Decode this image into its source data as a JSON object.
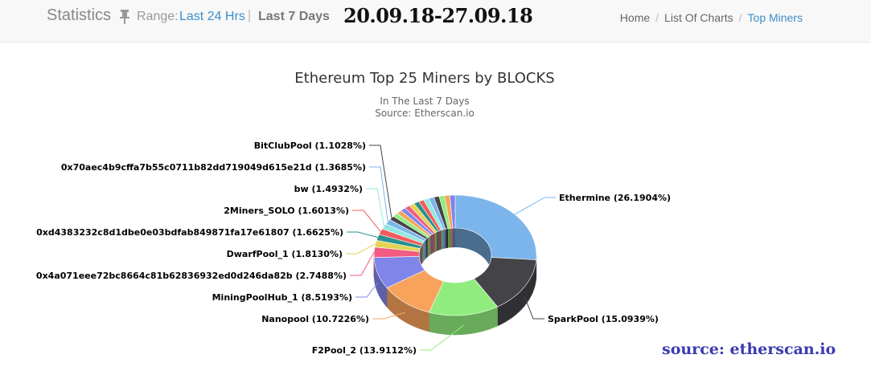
{
  "header": {
    "title": "Statistics",
    "range_label": "Range:",
    "range_24h": "Last 24 Hrs",
    "range_sep": "|",
    "range_7d": "Last 7 Days",
    "date_range": "20.09.18-27.09.18"
  },
  "breadcrumb": {
    "home": "Home",
    "list": "List Of Charts",
    "current": "Top Miners"
  },
  "watermark": "source: etherscan.io",
  "chart_data": {
    "type": "pie",
    "title": "Ethereum Top 25 Miners by BLOCKS",
    "subtitle": "In The Last 7 Days",
    "source": "Source: Etherscan.io",
    "labeled": [
      {
        "name": "Ethermine",
        "value": 26.1904,
        "label": "Ethermine (26.1904%)",
        "color": "#7cb5ec"
      },
      {
        "name": "SparkPool",
        "value": 15.0939,
        "label": "SparkPool (15.0939%)",
        "color": "#434348"
      },
      {
        "name": "F2Pool_2",
        "value": 13.9112,
        "label": "F2Pool_2 (13.9112%)",
        "color": "#90ed7d"
      },
      {
        "name": "Nanopool",
        "value": 10.7226,
        "label": "Nanopool (10.7226%)",
        "color": "#f7a35c"
      },
      {
        "name": "MiningPoolHub_1",
        "value": 8.5193,
        "label": "MiningPoolHub_1 (8.5193%)",
        "color": "#8085e9"
      },
      {
        "name": "0x4a071eee72bc8664c81b62836932ed0d246da82b",
        "value": 2.7488,
        "label": "0x4a071eee72bc8664c81b62836932ed0d246da82b (2.7488%)",
        "color": "#f15c80"
      },
      {
        "name": "DwarfPool_1",
        "value": 1.813,
        "label": "DwarfPool_1 (1.8130%)",
        "color": "#e4d354"
      },
      {
        "name": "0xd4383232c8d1dbe0e03bdfab849871fa17e61807",
        "value": 1.6625,
        "label": "0xd4383232c8d1dbe0e03bdfab849871fa17e61807 (1.6625%)",
        "color": "#2b908f"
      },
      {
        "name": "2Miners_SOLO",
        "value": 1.6013,
        "label": "2Miners_SOLO (1.6013%)",
        "color": "#f45b5b"
      },
      {
        "name": "bw",
        "value": 1.4932,
        "label": "bw (1.4932%)",
        "color": "#91e8e1"
      },
      {
        "name": "0x70aec4b9cffa7b55c0711b82dd719049d615e21d",
        "value": 1.3685,
        "label": "0x70aec4b9cffa7b55c0711b82dd719049d615e21d (1.3685%)",
        "color": "#7cb5ec"
      },
      {
        "name": "BitClubPool",
        "value": 1.1028,
        "label": "BitClubPool (1.1028%)",
        "color": "#434348"
      }
    ],
    "unlabeled_colors": [
      "#90ed7d",
      "#f7a35c",
      "#8085e9",
      "#f15c80",
      "#e4d354",
      "#2b908f",
      "#f45b5b",
      "#91e8e1",
      "#7cb5ec",
      "#434348",
      "#90ed7d",
      "#f7a35c",
      "#8085e9"
    ],
    "depth_3d": true,
    "donut": true
  }
}
